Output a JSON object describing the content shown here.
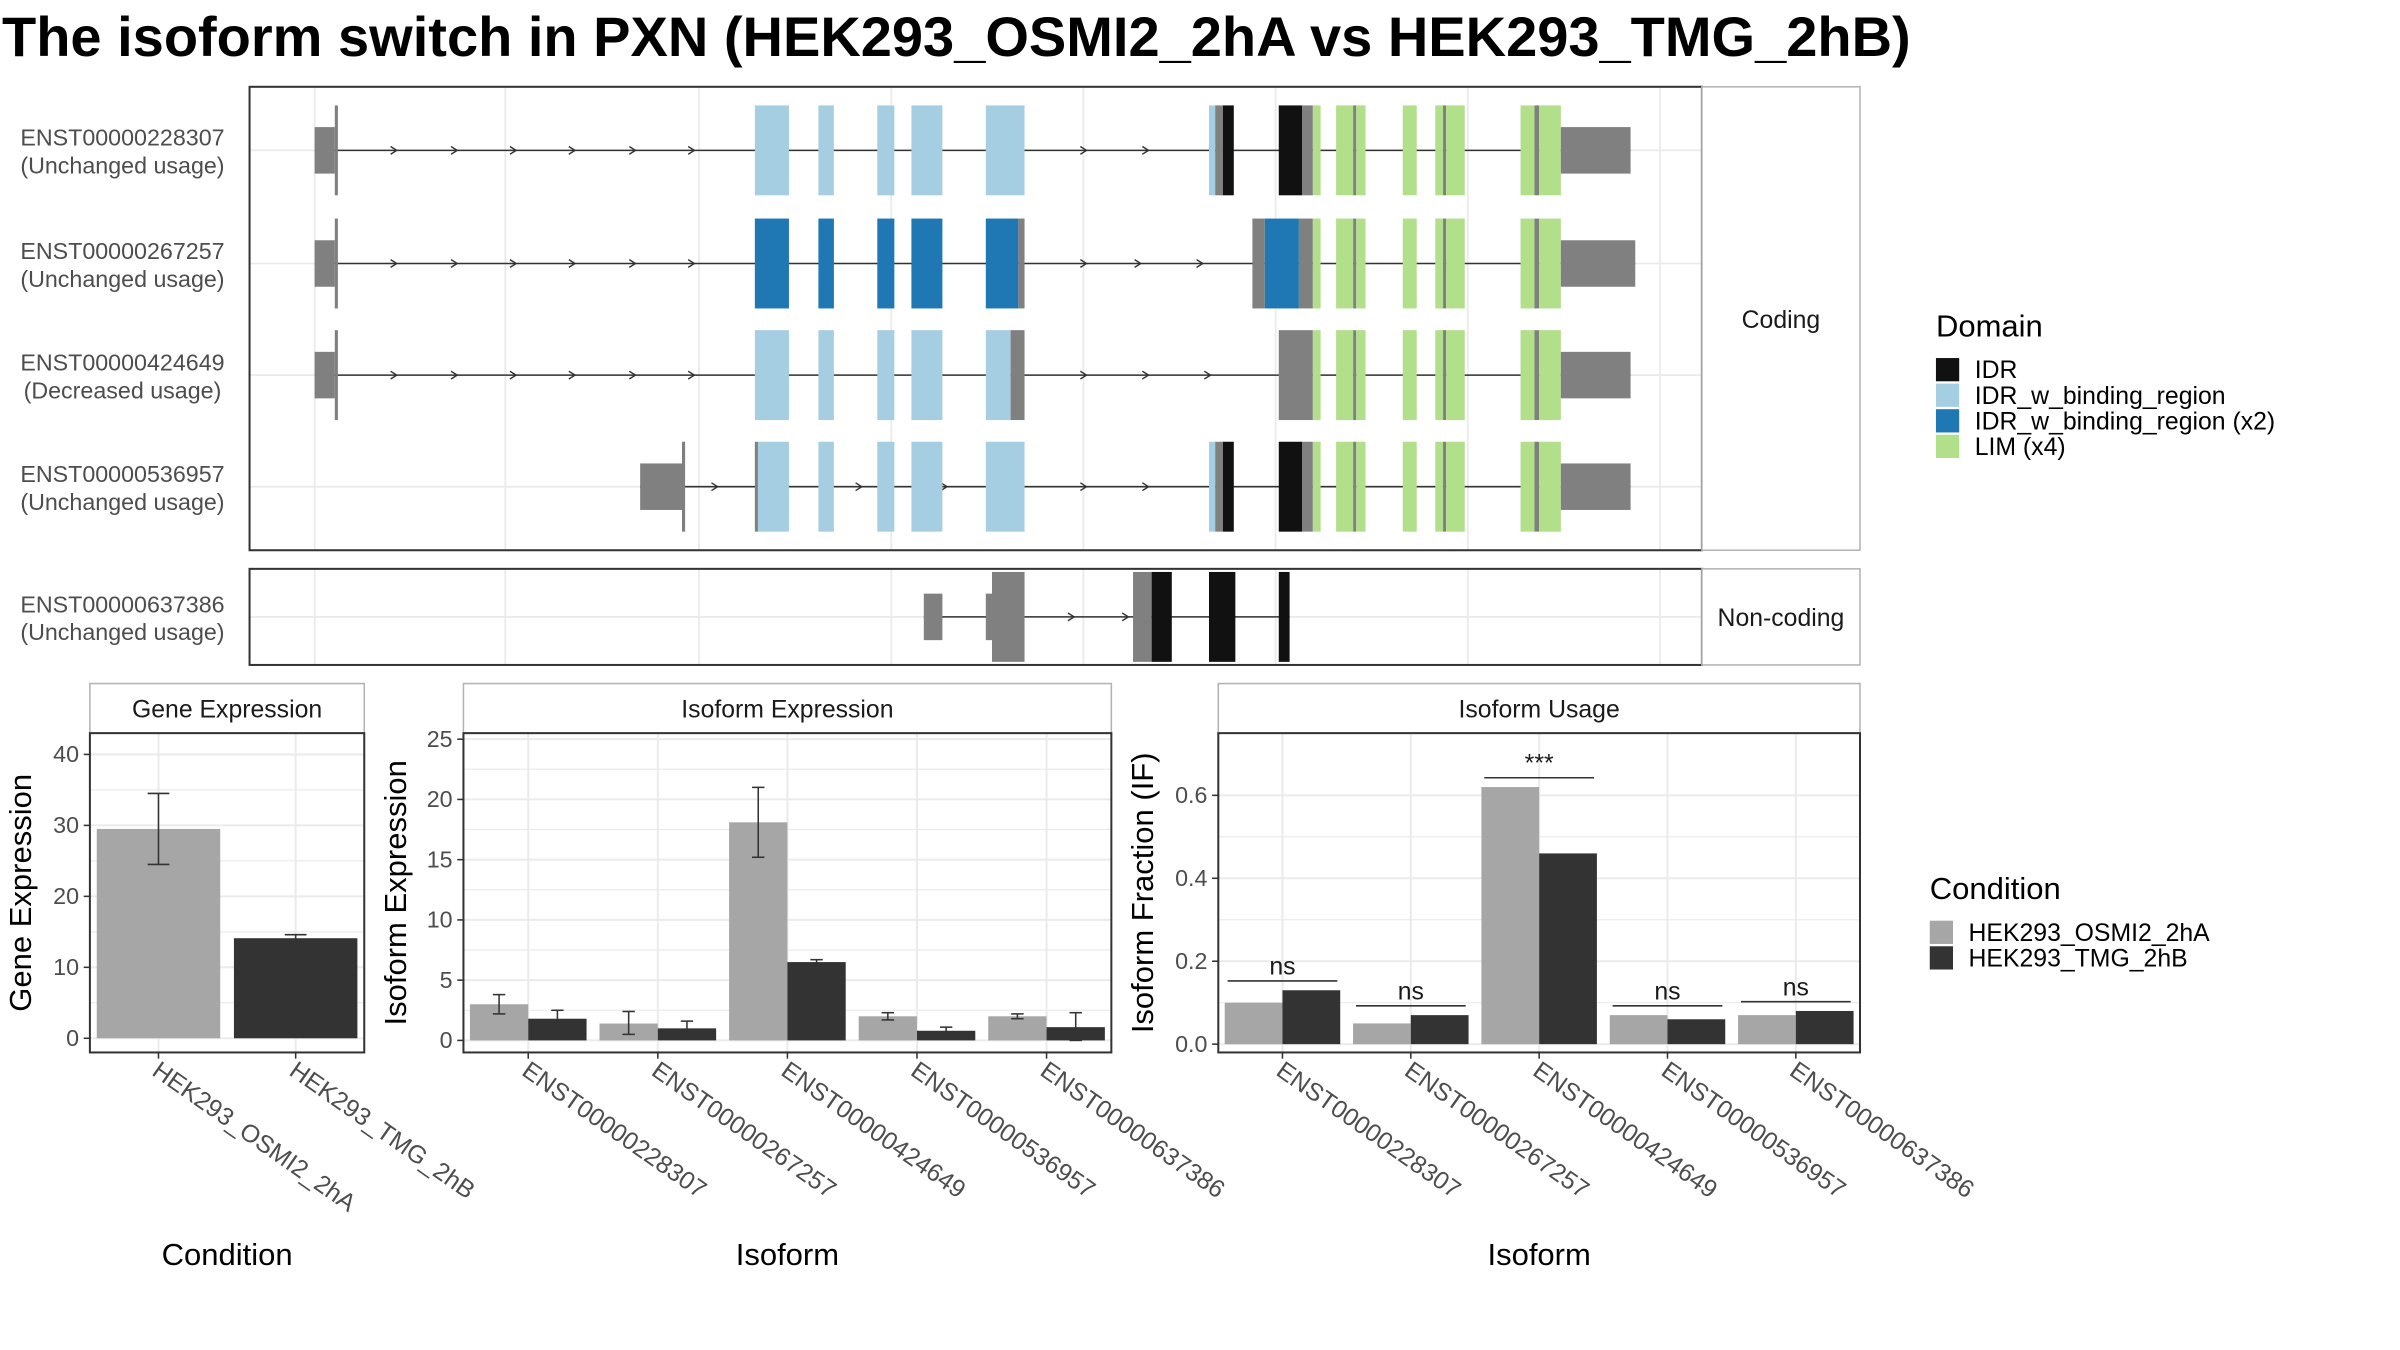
{
  "title": "The isoform switch in PXN (HEK293_OSMI2_2hA vs HEK293_TMG_2hB)",
  "colors": {
    "intron": "#333333",
    "utr_exon": "#808080",
    "panel_border": "#333333",
    "strip_border": "#b3b3b3",
    "grid": "#ebebeb",
    "axis_text": "#4d4d4d"
  },
  "chart_data": [
    {
      "type": "gene_structure",
      "legend": {
        "title": "Domain",
        "entries": [
          {
            "label": "IDR",
            "color": "#111111"
          },
          {
            "label": "IDR_w_binding_region",
            "color": "#a6cee3"
          },
          {
            "label": "IDR_w_binding_region (x2)",
            "color": "#1f78b4"
          },
          {
            "label": "LIM (x4)",
            "color": "#b2df8a"
          }
        ]
      },
      "facets": [
        {
          "label": "Coding",
          "transcripts": [
            {
              "name": "ENST00000228307",
              "usage": "(Unchanged usage)",
              "segments": [
                {
                  "s": 203,
                  "e": 216,
                  "t": "utr"
                },
                {
                  "s": 216,
                  "e": 218,
                  "t": "cds"
                },
                {
                  "s": 487,
                  "e": 509,
                  "t": "blue_light"
                },
                {
                  "s": 528,
                  "e": 538,
                  "t": "blue_light"
                },
                {
                  "s": 566,
                  "e": 577,
                  "t": "blue_light"
                },
                {
                  "s": 588,
                  "e": 608,
                  "t": "blue_light"
                },
                {
                  "s": 636,
                  "e": 661,
                  "t": "blue_light"
                },
                {
                  "s": 780,
                  "e": 784,
                  "t": "blue_light"
                },
                {
                  "s": 784,
                  "e": 789,
                  "t": "utr_tall"
                },
                {
                  "s": 789,
                  "e": 796,
                  "t": "idr"
                },
                {
                  "s": 825,
                  "e": 840,
                  "t": "idr"
                },
                {
                  "s": 840,
                  "e": 847,
                  "t": "utr_tall"
                },
                {
                  "s": 847,
                  "e": 852,
                  "t": "lim"
                },
                {
                  "s": 862,
                  "e": 873,
                  "t": "lim"
                },
                {
                  "s": 873,
                  "e": 875,
                  "t": "utr_tall"
                },
                {
                  "s": 875,
                  "e": 881,
                  "t": "lim"
                },
                {
                  "s": 905,
                  "e": 914,
                  "t": "lim"
                },
                {
                  "s": 926,
                  "e": 931,
                  "t": "lim"
                },
                {
                  "s": 931,
                  "e": 933,
                  "t": "utr_tall"
                },
                {
                  "s": 933,
                  "e": 945,
                  "t": "lim"
                },
                {
                  "s": 981,
                  "e": 990,
                  "t": "lim"
                },
                {
                  "s": 990,
                  "e": 993,
                  "t": "utr_tall"
                },
                {
                  "s": 993,
                  "e": 1007,
                  "t": "lim"
                },
                {
                  "s": 1007,
                  "e": 1052,
                  "t": "utr"
                }
              ],
              "arrows": [
                255,
                294,
                332,
                370,
                409,
                447,
                700,
                740
              ]
            },
            {
              "name": "ENST00000267257",
              "usage": "(Unchanged usage)",
              "segments": [
                {
                  "s": 203,
                  "e": 216,
                  "t": "utr"
                },
                {
                  "s": 216,
                  "e": 218,
                  "t": "cds"
                },
                {
                  "s": 487,
                  "e": 509,
                  "t": "blue_dark"
                },
                {
                  "s": 528,
                  "e": 538,
                  "t": "blue_dark"
                },
                {
                  "s": 566,
                  "e": 577,
                  "t": "blue_dark"
                },
                {
                  "s": 588,
                  "e": 608,
                  "t": "blue_dark"
                },
                {
                  "s": 636,
                  "e": 657,
                  "t": "blue_dark"
                },
                {
                  "s": 657,
                  "e": 661,
                  "t": "utr_tall"
                },
                {
                  "s": 808,
                  "e": 816,
                  "t": "utr_tall"
                },
                {
                  "s": 816,
                  "e": 838,
                  "t": "blue_dark"
                },
                {
                  "s": 838,
                  "e": 847,
                  "t": "utr_tall"
                },
                {
                  "s": 847,
                  "e": 852,
                  "t": "lim"
                },
                {
                  "s": 862,
                  "e": 873,
                  "t": "lim"
                },
                {
                  "s": 873,
                  "e": 875,
                  "t": "utr_tall"
                },
                {
                  "s": 875,
                  "e": 881,
                  "t": "lim"
                },
                {
                  "s": 905,
                  "e": 914,
                  "t": "lim"
                },
                {
                  "s": 926,
                  "e": 931,
                  "t": "lim"
                },
                {
                  "s": 931,
                  "e": 933,
                  "t": "utr_tall"
                },
                {
                  "s": 933,
                  "e": 945,
                  "t": "lim"
                },
                {
                  "s": 981,
                  "e": 990,
                  "t": "lim"
                },
                {
                  "s": 990,
                  "e": 993,
                  "t": "utr_tall"
                },
                {
                  "s": 993,
                  "e": 1007,
                  "t": "lim"
                },
                {
                  "s": 1007,
                  "e": 1055,
                  "t": "utr"
                }
              ],
              "arrows": [
                255,
                294,
                332,
                370,
                409,
                447,
                700,
                735,
                775
              ]
            },
            {
              "name": "ENST00000424649",
              "usage": "(Decreased usage)",
              "segments": [
                {
                  "s": 203,
                  "e": 216,
                  "t": "utr"
                },
                {
                  "s": 216,
                  "e": 218,
                  "t": "cds"
                },
                {
                  "s": 487,
                  "e": 509,
                  "t": "blue_light"
                },
                {
                  "s": 528,
                  "e": 538,
                  "t": "blue_light"
                },
                {
                  "s": 566,
                  "e": 577,
                  "t": "blue_light"
                },
                {
                  "s": 588,
                  "e": 608,
                  "t": "blue_light"
                },
                {
                  "s": 636,
                  "e": 652,
                  "t": "blue_light"
                },
                {
                  "s": 652,
                  "e": 661,
                  "t": "utr_tall"
                },
                {
                  "s": 825,
                  "e": 847,
                  "t": "utr_tall"
                },
                {
                  "s": 847,
                  "e": 852,
                  "t": "lim"
                },
                {
                  "s": 862,
                  "e": 873,
                  "t": "lim"
                },
                {
                  "s": 873,
                  "e": 875,
                  "t": "utr_tall"
                },
                {
                  "s": 875,
                  "e": 881,
                  "t": "lim"
                },
                {
                  "s": 905,
                  "e": 914,
                  "t": "lim"
                },
                {
                  "s": 926,
                  "e": 931,
                  "t": "lim"
                },
                {
                  "s": 931,
                  "e": 933,
                  "t": "utr_tall"
                },
                {
                  "s": 933,
                  "e": 945,
                  "t": "lim"
                },
                {
                  "s": 981,
                  "e": 990,
                  "t": "lim"
                },
                {
                  "s": 990,
                  "e": 993,
                  "t": "utr_tall"
                },
                {
                  "s": 993,
                  "e": 1007,
                  "t": "lim"
                },
                {
                  "s": 1007,
                  "e": 1052,
                  "t": "utr"
                }
              ],
              "arrows": [
                255,
                294,
                332,
                370,
                409,
                447,
                700,
                740,
                780
              ]
            },
            {
              "name": "ENST00000536957",
              "usage": "(Unchanged usage)",
              "segments": [
                {
                  "s": 413,
                  "e": 440,
                  "t": "utr"
                },
                {
                  "s": 440,
                  "e": 442,
                  "t": "cds"
                },
                {
                  "s": 487,
                  "e": 489,
                  "t": "utr_tall"
                },
                {
                  "s": 489,
                  "e": 509,
                  "t": "blue_light"
                },
                {
                  "s": 528,
                  "e": 538,
                  "t": "blue_light"
                },
                {
                  "s": 566,
                  "e": 577,
                  "t": "blue_light"
                },
                {
                  "s": 588,
                  "e": 608,
                  "t": "blue_light"
                },
                {
                  "s": 636,
                  "e": 661,
                  "t": "blue_light"
                },
                {
                  "s": 780,
                  "e": 784,
                  "t": "blue_light"
                },
                {
                  "s": 784,
                  "e": 789,
                  "t": "utr_tall"
                },
                {
                  "s": 789,
                  "e": 796,
                  "t": "idr"
                },
                {
                  "s": 825,
                  "e": 840,
                  "t": "idr"
                },
                {
                  "s": 840,
                  "e": 847,
                  "t": "utr_tall"
                },
                {
                  "s": 847,
                  "e": 852,
                  "t": "lim"
                },
                {
                  "s": 862,
                  "e": 873,
                  "t": "lim"
                },
                {
                  "s": 873,
                  "e": 875,
                  "t": "utr_tall"
                },
                {
                  "s": 875,
                  "e": 881,
                  "t": "lim"
                },
                {
                  "s": 905,
                  "e": 914,
                  "t": "lim"
                },
                {
                  "s": 926,
                  "e": 931,
                  "t": "lim"
                },
                {
                  "s": 931,
                  "e": 933,
                  "t": "utr_tall"
                },
                {
                  "s": 933,
                  "e": 945,
                  "t": "lim"
                },
                {
                  "s": 981,
                  "e": 990,
                  "t": "lim"
                },
                {
                  "s": 990,
                  "e": 993,
                  "t": "utr_tall"
                },
                {
                  "s": 993,
                  "e": 1007,
                  "t": "lim"
                },
                {
                  "s": 1007,
                  "e": 1052,
                  "t": "utr"
                }
              ],
              "arrows": [
                462,
                555,
                610,
                700,
                740
              ]
            }
          ]
        },
        {
          "label": "Non-coding",
          "transcripts": [
            {
              "name": "ENST00000637386",
              "usage": "(Unchanged usage)",
              "segments": [
                {
                  "s": 596,
                  "e": 608,
                  "t": "utr"
                },
                {
                  "s": 636,
                  "e": 640,
                  "t": "utr"
                },
                {
                  "s": 640,
                  "e": 661,
                  "t": "utr_tall"
                },
                {
                  "s": 731,
                  "e": 743,
                  "t": "utr_tall"
                },
                {
                  "s": 743,
                  "e": 756,
                  "t": "idr"
                },
                {
                  "s": 780,
                  "e": 797,
                  "t": "idr"
                },
                {
                  "s": 825,
                  "e": 832,
                  "t": "idr"
                }
              ],
              "arrows": [
                692,
                727
              ]
            }
          ]
        }
      ]
    },
    {
      "type": "bar",
      "title": "Gene Expression",
      "xlabel": "Condition",
      "ylabel": "Gene Expression",
      "ylim": [
        -2,
        43
      ],
      "yticks": [
        0,
        10,
        20,
        30,
        40
      ],
      "categories": [
        "HEK293_OSMI2_2hA",
        "HEK293_TMG_2hB"
      ],
      "values": [
        29.5,
        14.1
      ],
      "errors": [
        [
          24.5,
          34.5
        ],
        [
          13.6,
          14.6
        ]
      ],
      "colors": [
        "#a6a6a6",
        "#333333"
      ]
    },
    {
      "type": "bar",
      "title": "Isoform Expression",
      "xlabel": "Isoform",
      "ylabel": "Isoform Expression",
      "ylim": [
        -1,
        25.5
      ],
      "yticks": [
        0,
        5,
        10,
        15,
        20,
        25
      ],
      "categories": [
        "ENST00000228307",
        "ENST00000267257",
        "ENST00000424649",
        "ENST00000536957",
        "ENST00000637386"
      ],
      "series": [
        {
          "name": "HEK293_OSMI2_2hA",
          "values": [
            3.0,
            1.4,
            18.1,
            2.0,
            2.0
          ],
          "errors": [
            [
              2.2,
              3.8
            ],
            [
              0.5,
              2.4
            ],
            [
              15.2,
              21.0
            ],
            [
              1.7,
              2.3
            ],
            [
              1.8,
              2.2
            ]
          ],
          "color": "#a6a6a6"
        },
        {
          "name": "HEK293_TMG_2hB",
          "values": [
            1.8,
            1.0,
            6.5,
            0.8,
            1.1
          ],
          "errors": [
            [
              1.1,
              2.5
            ],
            [
              0.4,
              1.6
            ],
            [
              6.3,
              6.7
            ],
            [
              0.5,
              1.1
            ],
            [
              0.0,
              2.3
            ]
          ],
          "color": "#333333"
        }
      ]
    },
    {
      "type": "bar",
      "title": "Isoform Usage",
      "xlabel": "Isoform",
      "ylabel": "Isoform Fraction (IF)",
      "ylim": [
        -0.02,
        0.75
      ],
      "yticks": [
        0.0,
        0.2,
        0.4,
        0.6
      ],
      "ytick_labels": [
        "0.0",
        "0.2",
        "0.4",
        "0.6"
      ],
      "categories": [
        "ENST00000228307",
        "ENST00000267257",
        "ENST00000424649",
        "ENST00000536957",
        "ENST00000637386"
      ],
      "series": [
        {
          "name": "HEK293_OSMI2_2hA",
          "values": [
            0.1,
            0.05,
            0.62,
            0.07,
            0.07
          ],
          "color": "#a6a6a6"
        },
        {
          "name": "HEK293_TMG_2hB",
          "values": [
            0.13,
            0.07,
            0.46,
            0.06,
            0.08
          ],
          "color": "#333333"
        }
      ],
      "significance": [
        "ns",
        "ns",
        "***",
        "ns",
        "ns"
      ]
    }
  ],
  "condition_legend": {
    "title": "Condition",
    "entries": [
      {
        "label": "HEK293_OSMI2_2hA",
        "color": "#a6a6a6"
      },
      {
        "label": "HEK293_TMG_2hB",
        "color": "#333333"
      }
    ]
  }
}
